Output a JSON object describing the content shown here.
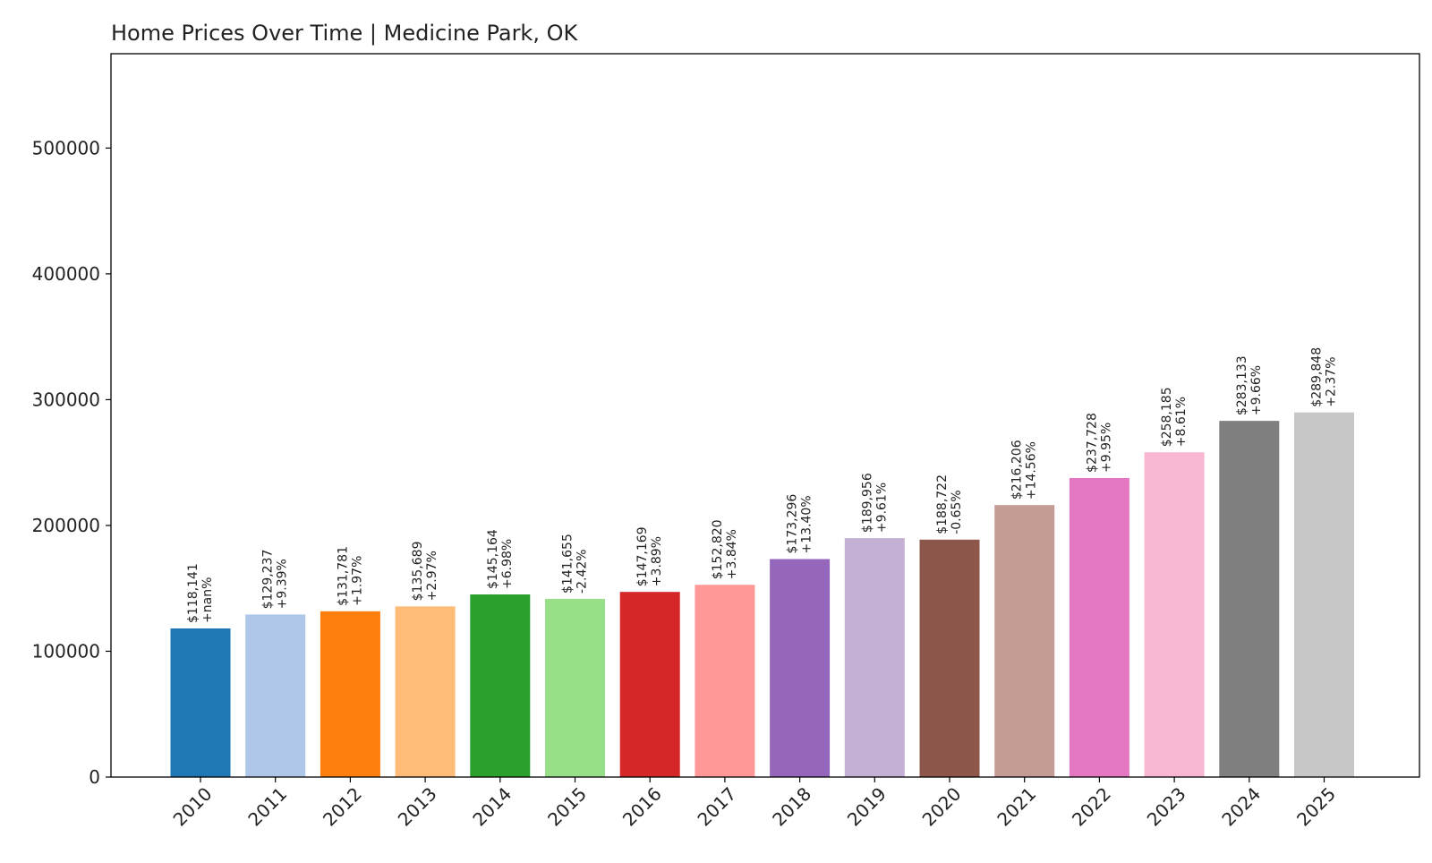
{
  "chart_data": {
    "type": "bar",
    "title": "Home Prices Over Time | Medicine Park, OK",
    "xlabel": "",
    "ylabel": "",
    "ylim": [
      0,
      575000
    ],
    "yticks": [
      0,
      100000,
      200000,
      300000,
      400000,
      500000
    ],
    "ytick_labels": [
      "0",
      "100000",
      "200000",
      "300000",
      "400000",
      "500000"
    ],
    "grid": false,
    "categories": [
      "2010",
      "2011",
      "2012",
      "2013",
      "2014",
      "2015",
      "2016",
      "2017",
      "2018",
      "2019",
      "2020",
      "2021",
      "2022",
      "2023",
      "2024",
      "2025"
    ],
    "values": [
      118141,
      129237,
      131781,
      135689,
      145164,
      141655,
      147169,
      152820,
      173296,
      189956,
      188722,
      216206,
      237728,
      258185,
      283133,
      289848
    ],
    "price_labels": [
      "$118,141",
      "$129,237",
      "$131,781",
      "$135,689",
      "$145,164",
      "$141,655",
      "$147,169",
      "$152,820",
      "$173,296",
      "$189,956",
      "$188,722",
      "$216,206",
      "$237,728",
      "$258,185",
      "$283,133",
      "$289,848"
    ],
    "change_labels": [
      "+nan%",
      "+9.39%",
      "+1.97%",
      "+2.97%",
      "+6.98%",
      "-2.42%",
      "+3.89%",
      "+3.84%",
      "+13.40%",
      "+9.61%",
      "-0.65%",
      "+14.56%",
      "+9.95%",
      "+8.61%",
      "+9.66%",
      "+2.37%"
    ],
    "colors": [
      "#1f77b4",
      "#aec7e8",
      "#ff7f0e",
      "#ffbb78",
      "#2ca02c",
      "#98df8a",
      "#d62728",
      "#ff9896",
      "#9467bd",
      "#c5b0d5",
      "#8c564b",
      "#c49c94",
      "#e377c2",
      "#f7b6d2",
      "#7f7f7f",
      "#c7c7c7"
    ]
  }
}
